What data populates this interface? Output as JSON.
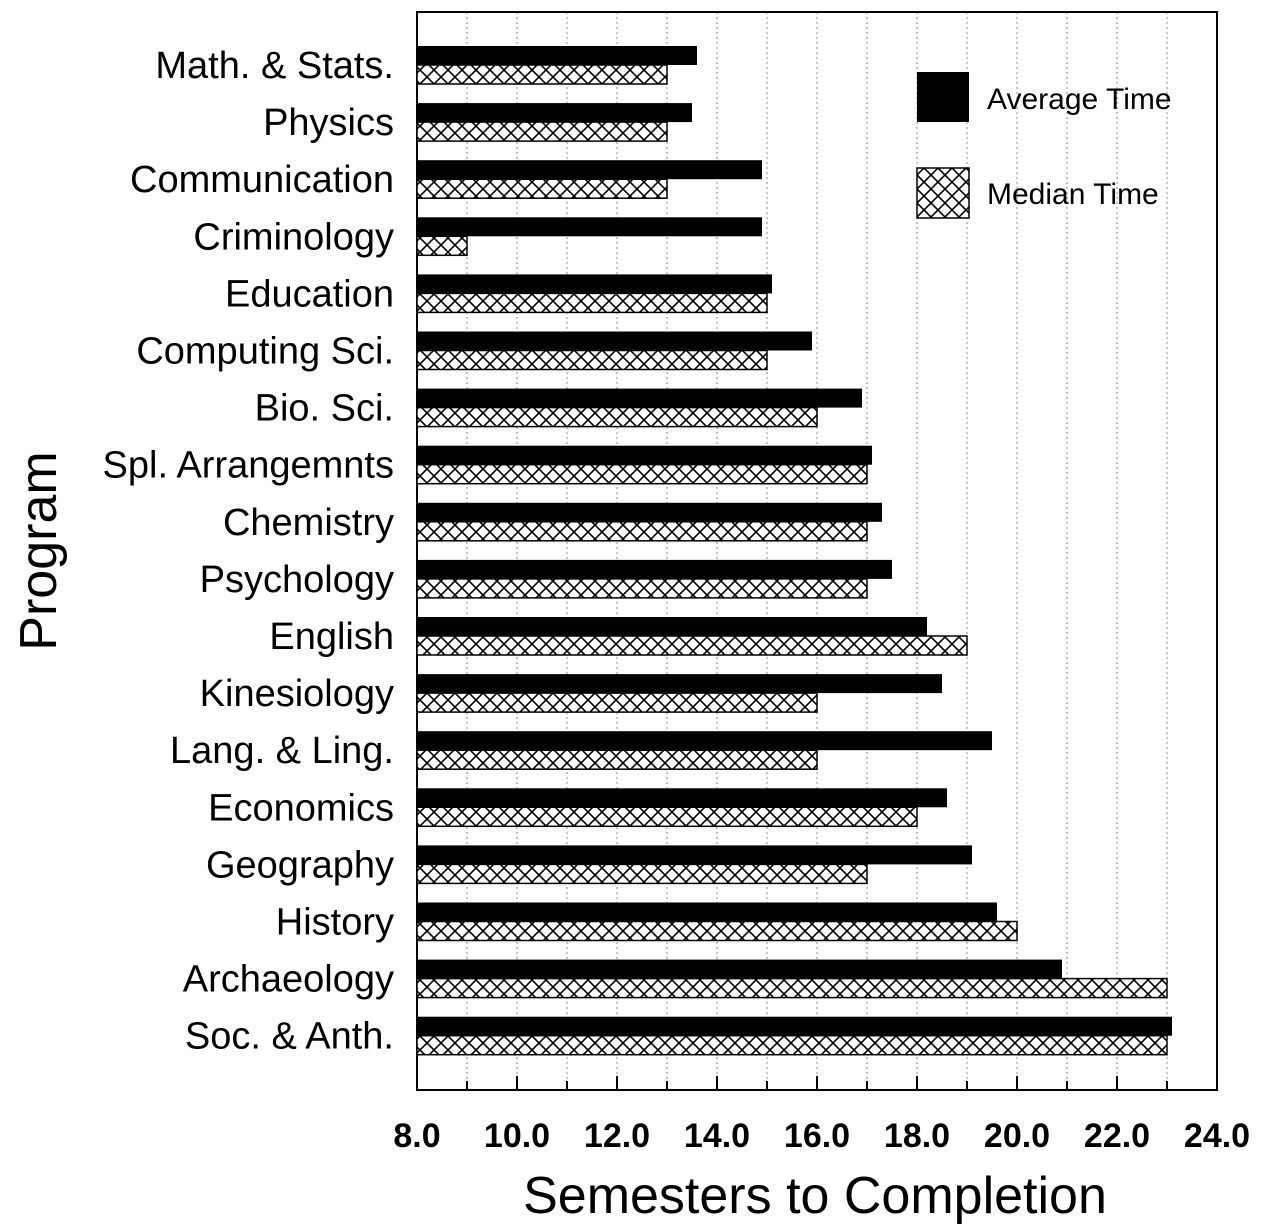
{
  "chart_data": {
    "type": "bar",
    "orientation": "horizontal",
    "title": "",
    "xlabel": "Semesters to Completion",
    "ylabel": "Program",
    "xlim": [
      8.0,
      24.0
    ],
    "xticks": [
      "8.0",
      "10.0",
      "12.0",
      "14.0",
      "16.0",
      "18.0",
      "20.0",
      "22.0",
      "24.0"
    ],
    "grid": "vertical dotted lines every 1.0",
    "legend_position": "top-right",
    "categories": [
      "Math. & Stats.",
      "Physics",
      "Communication",
      "Criminology",
      "Education",
      "Computing Sci.",
      "Bio. Sci.",
      "Spl. Arrangemnts",
      "Chemistry",
      "Psychology",
      "English",
      "Kinesiology",
      "Lang. & Ling.",
      "Economics",
      "Geography",
      "History",
      "Archaeology",
      "Soc. & Anth."
    ],
    "series": [
      {
        "name": "Average Time",
        "fill": "solid",
        "color": "#000000",
        "values": [
          13.6,
          13.5,
          14.9,
          14.9,
          15.1,
          15.9,
          16.9,
          17.1,
          17.3,
          17.5,
          18.2,
          18.5,
          19.5,
          18.6,
          19.1,
          19.6,
          20.9,
          23.1
        ]
      },
      {
        "name": "Median Time",
        "fill": "crosshatch",
        "color": "#000000",
        "values": [
          13.0,
          13.0,
          13.0,
          9.0,
          15.0,
          15.0,
          16.0,
          17.0,
          17.0,
          17.0,
          19.0,
          16.0,
          16.0,
          18.0,
          17.0,
          20.0,
          23.0,
          23.0
        ]
      }
    ]
  }
}
